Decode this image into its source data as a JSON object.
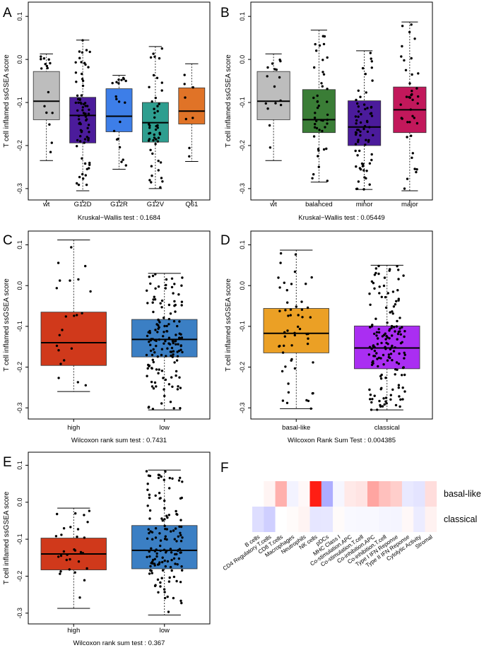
{
  "chart_data": [
    {
      "panel": "A",
      "type": "box",
      "ylabel": "T cell inflamed ssGSEA score",
      "ylim": [
        -0.31,
        0.12
      ],
      "yticks": [
        0.1,
        0.0,
        -0.1,
        -0.2,
        -0.3
      ],
      "ytick_labels": [
        "0.1",
        "0.0",
        "-0.1",
        "-0.2",
        "-0.3"
      ],
      "test_label": "Kruskal−Wallis test : 0.1684",
      "groups": [
        {
          "name": "wt",
          "color": "#bdbdbd",
          "n": 16,
          "stats": [
            -0.235,
            -0.14,
            -0.097,
            -0.028,
            0.013
          ]
        },
        {
          "name": "G12D",
          "color": "#4b1b9b",
          "n": 75,
          "stats": [
            -0.305,
            -0.194,
            -0.13,
            -0.088,
            0.045
          ]
        },
        {
          "name": "G12R",
          "color": "#3d7ee8",
          "n": 20,
          "stats": [
            -0.255,
            -0.168,
            -0.132,
            -0.068,
            -0.037
          ]
        },
        {
          "name": "G12V",
          "color": "#2e9e8f",
          "n": 50,
          "stats": [
            -0.3,
            -0.192,
            -0.147,
            -0.1,
            0.03
          ]
        },
        {
          "name": "Q61",
          "color": "#e07327",
          "n": 8,
          "stats": [
            -0.237,
            -0.15,
            -0.12,
            -0.066,
            -0.01
          ]
        }
      ]
    },
    {
      "panel": "B",
      "type": "box",
      "ylabel": "T cell inflamed ssGSEA score",
      "ylim": [
        -0.31,
        0.12
      ],
      "yticks": [
        0.1,
        0.0,
        -0.1,
        -0.2,
        -0.3
      ],
      "ytick_labels": [
        "0.1",
        "0.0",
        "-0.1",
        "-0.2",
        "-0.3"
      ],
      "test_label": "Kruskal−Wallis test : 0.05449",
      "groups": [
        {
          "name": "wt",
          "color": "#bdbdbd",
          "n": 16,
          "stats": [
            -0.235,
            -0.14,
            -0.097,
            -0.028,
            0.013
          ]
        },
        {
          "name": "balanced",
          "color": "#3a7d36",
          "n": 45,
          "stats": [
            -0.285,
            -0.17,
            -0.14,
            -0.07,
            0.068
          ]
        },
        {
          "name": "minor",
          "color": "#4b1b9b",
          "n": 70,
          "stats": [
            -0.302,
            -0.2,
            -0.157,
            -0.096,
            0.02
          ]
        },
        {
          "name": "major",
          "color": "#c2185b",
          "n": 40,
          "stats": [
            -0.305,
            -0.17,
            -0.117,
            -0.064,
            0.087
          ]
        }
      ]
    },
    {
      "panel": "C",
      "type": "box",
      "ylabel": "T cell inflamed ssGSEA score",
      "ylim": [
        -0.31,
        0.12
      ],
      "yticks": [
        0.1,
        0.0,
        -0.1,
        -0.2,
        -0.3
      ],
      "ytick_labels": [
        "0.1",
        "0.0",
        "-0.1",
        "-0.2",
        "-0.3"
      ],
      "test_label": "Wilcoxon rank sum test : 0.7431",
      "groups": [
        {
          "name": "high",
          "color": "#d0391b",
          "n": 22,
          "stats": [
            -0.26,
            -0.196,
            -0.14,
            -0.065,
            0.112
          ]
        },
        {
          "name": "low",
          "color": "#3b7fc4",
          "n": 150,
          "stats": [
            -0.305,
            -0.175,
            -0.132,
            -0.083,
            0.03
          ]
        }
      ]
    },
    {
      "panel": "D",
      "type": "box",
      "ylabel": "T cell inflamed ssGSEA score",
      "ylim": [
        -0.31,
        0.12
      ],
      "yticks": [
        0.1,
        0.0,
        -0.1,
        -0.2,
        -0.3
      ],
      "ytick_labels": [
        "0.1",
        "0.0",
        "-0.1",
        "-0.2",
        "-0.3"
      ],
      "test_label": "Wilcoxon Rank Sum Test : 0.004385",
      "groups": [
        {
          "name": "basal-like",
          "color": "#eba025",
          "n": 55,
          "stats": [
            -0.302,
            -0.165,
            -0.117,
            -0.056,
            0.087
          ]
        },
        {
          "name": "classical",
          "color": "#aa2ef2",
          "n": 160,
          "stats": [
            -0.305,
            -0.204,
            -0.153,
            -0.099,
            0.05
          ]
        }
      ]
    },
    {
      "panel": "E",
      "type": "box",
      "ylabel": "T cell inflamed ssGSEA score",
      "ylim": [
        -0.31,
        0.12
      ],
      "yticks": [
        0.1,
        0.0,
        -0.1,
        -0.2,
        -0.3
      ],
      "ytick_labels": [
        "0.1",
        "0.0",
        "-0.1",
        "-0.2",
        "-0.3"
      ],
      "test_label": "Wilcoxon rank sum test : 0.367",
      "groups": [
        {
          "name": "high",
          "color": "#d0391b",
          "n": 30,
          "stats": [
            -0.287,
            -0.183,
            -0.14,
            -0.097,
            -0.016
          ]
        },
        {
          "name": "low",
          "color": "#3b7fc4",
          "n": 140,
          "stats": [
            -0.305,
            -0.18,
            -0.13,
            -0.063,
            0.087
          ]
        }
      ]
    },
    {
      "panel": "F",
      "type": "heatmap",
      "rows": [
        "basal-like",
        "classical"
      ],
      "columns": [
        "B cells",
        "CD4 Regulatory T.cells",
        "CD8 T.cells",
        "Macrophages",
        "Neutrophils",
        "NK cells",
        "pDCs",
        "MHC Class I",
        "Co-stimulation.APC",
        "Co-stimulation.T.cell",
        "Co-inhibition.APC",
        "Co-inhibition.T.cell",
        "Type I IFN Reponse",
        "Type II IFN Reponse",
        "Cytolytic Activity",
        "Stromal"
      ],
      "values": [
        [
          0.0,
          0.05,
          0.35,
          -0.08,
          0.03,
          1.0,
          -0.55,
          -0.06,
          0.1,
          0.12,
          0.4,
          0.28,
          0.22,
          -0.15,
          -0.18,
          0.15
        ],
        [
          -0.22,
          -0.32,
          0.0,
          0.02,
          0.05,
          -0.17,
          -0.16,
          0.02,
          -0.04,
          -0.05,
          -0.05,
          -0.07,
          -0.07,
          0.03,
          -0.13,
          0.06
        ]
      ]
    }
  ]
}
